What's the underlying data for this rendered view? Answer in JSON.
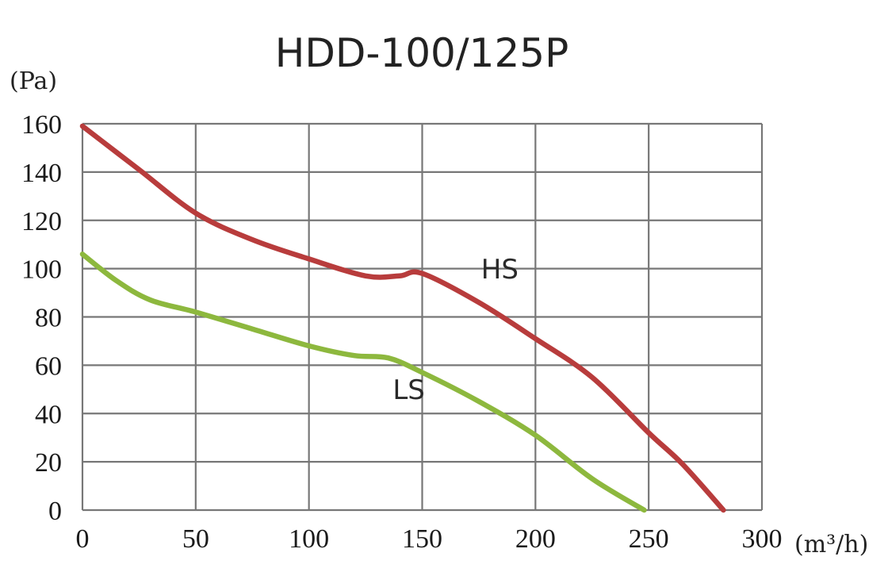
{
  "chart_data": {
    "type": "line",
    "title": "HDD-100/125P",
    "ylabel": "(Pa)",
    "xlabel": "(m³/h)",
    "xlim": [
      0,
      300
    ],
    "ylim": [
      0,
      160
    ],
    "xticks": [
      0,
      50,
      100,
      150,
      200,
      250,
      300
    ],
    "yticks": [
      0,
      20,
      40,
      60,
      80,
      100,
      120,
      140,
      160
    ],
    "xtick_labels": [
      "0",
      "50",
      "100",
      "150",
      "200",
      "250",
      "300"
    ],
    "ytick_labels": [
      "0",
      "20",
      "40",
      "60",
      "80",
      "100",
      "120",
      "140",
      "160"
    ],
    "grid": true,
    "series": [
      {
        "name": "HS",
        "color": "#b83c3c",
        "x": [
          0,
          25,
          50,
          75,
          100,
          125,
          140,
          150,
          175,
          200,
          225,
          250,
          265,
          283
        ],
        "y": [
          159,
          141,
          123,
          112,
          104,
          97,
          97,
          98,
          86,
          71,
          55,
          32,
          19,
          0
        ]
      },
      {
        "name": "LS",
        "color": "#8db83e",
        "x": [
          0,
          15,
          30,
          50,
          75,
          100,
          120,
          135,
          150,
          175,
          200,
          225,
          248
        ],
        "y": [
          106,
          95,
          87,
          82,
          75,
          68,
          64,
          63,
          57,
          45,
          31,
          13,
          0
        ]
      }
    ]
  }
}
